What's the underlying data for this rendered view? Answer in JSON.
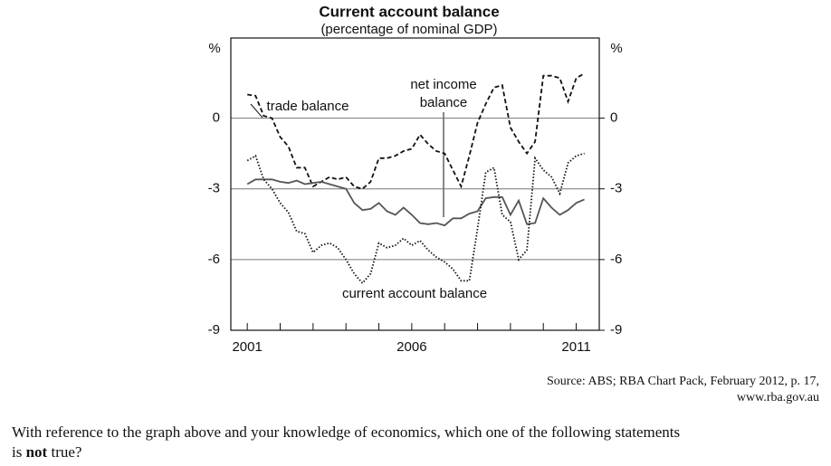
{
  "chart_data": {
    "type": "line",
    "title": "Current account balance",
    "subtitle": "(percentage of nominal GDP)",
    "y_label": "%",
    "y2_label": "%",
    "x": [
      2001,
      2001.25,
      2001.5,
      2001.75,
      2002,
      2002.25,
      2002.5,
      2002.75,
      2003,
      2003.25,
      2003.5,
      2003.75,
      2004,
      2004.25,
      2004.5,
      2004.75,
      2005,
      2005.25,
      2005.5,
      2005.75,
      2006,
      2006.25,
      2006.5,
      2006.75,
      2007,
      2007.25,
      2007.5,
      2007.75,
      2008,
      2008.25,
      2008.5,
      2008.75,
      2009,
      2009.25,
      2009.5,
      2009.75,
      2010,
      2010.25,
      2010.5,
      2010.75,
      2011,
      2011.25
    ],
    "xlim": [
      2000.5,
      2011.7
    ],
    "xticks": [
      2001,
      2006,
      2011
    ],
    "x_minor_ticks": [
      2002,
      2003,
      2004,
      2005,
      2007,
      2008,
      2009,
      2010
    ],
    "ylim": [
      -9,
      3.4
    ],
    "yticks": [
      0,
      -3,
      -6,
      -9
    ],
    "y2lim": [
      -9,
      3.4
    ],
    "y2ticks": [
      0,
      -3,
      -6,
      -9
    ],
    "grid": true,
    "series": [
      {
        "name": "trade balance",
        "color": "#111111",
        "dash": "dashed",
        "values": [
          1.0,
          0.95,
          0.1,
          0.0,
          -0.8,
          -1.2,
          -2.1,
          -2.1,
          -2.9,
          -2.7,
          -2.5,
          -2.6,
          -2.5,
          -2.9,
          -3.0,
          -2.7,
          -1.7,
          -1.7,
          -1.6,
          -1.4,
          -1.3,
          -0.7,
          -1.1,
          -1.4,
          -1.5,
          -2.2,
          -2.9,
          -1.6,
          -0.2,
          0.6,
          1.3,
          1.4,
          -0.4,
          -1.0,
          -1.5,
          -1.0,
          1.8,
          1.8,
          1.7,
          0.7,
          1.7,
          1.9
        ]
      },
      {
        "name": "net income balance",
        "color": "#555555",
        "dash": "solid",
        "values": [
          -2.8,
          -2.6,
          -2.6,
          -2.6,
          -2.7,
          -2.75,
          -2.65,
          -2.8,
          -2.75,
          -2.7,
          -2.8,
          -2.9,
          -3.0,
          -3.6,
          -3.9,
          -3.85,
          -3.6,
          -3.95,
          -4.1,
          -3.8,
          -4.1,
          -4.45,
          -4.5,
          -4.45,
          -4.55,
          -4.25,
          -4.25,
          -4.05,
          -3.95,
          -3.4,
          -3.35,
          -3.35,
          -4.1,
          -3.5,
          -4.5,
          -4.45,
          -3.4,
          -3.8,
          -4.1,
          -3.9,
          -3.6,
          -3.45
        ]
      },
      {
        "name": "current account balance",
        "color": "#111111",
        "dash": "dotted",
        "values": [
          -1.8,
          -1.6,
          -2.6,
          -3.0,
          -3.6,
          -4.0,
          -4.8,
          -4.9,
          -5.7,
          -5.4,
          -5.3,
          -5.5,
          -6.0,
          -6.6,
          -7.0,
          -6.6,
          -5.3,
          -5.5,
          -5.4,
          -5.1,
          -5.4,
          -5.2,
          -5.6,
          -5.9,
          -6.1,
          -6.4,
          -6.9,
          -6.9,
          -4.7,
          -2.3,
          -2.1,
          -4.1,
          -4.4,
          -6.0,
          -5.6,
          -1.7,
          -2.2,
          -2.5,
          -3.2,
          -1.9,
          -1.6,
          -1.5
        ]
      }
    ],
    "annotations": [
      "trade balance",
      "net income",
      "balance",
      "current account balance"
    ]
  },
  "source": [
    "Source: ABS; RBA Chart Pack, February 2012, p. 17,",
    "www.rba.gov.au"
  ],
  "question": [
    "With reference to the graph above and your knowledge of economics, which one of the following statements",
    "is ",
    "not",
    " true?"
  ]
}
